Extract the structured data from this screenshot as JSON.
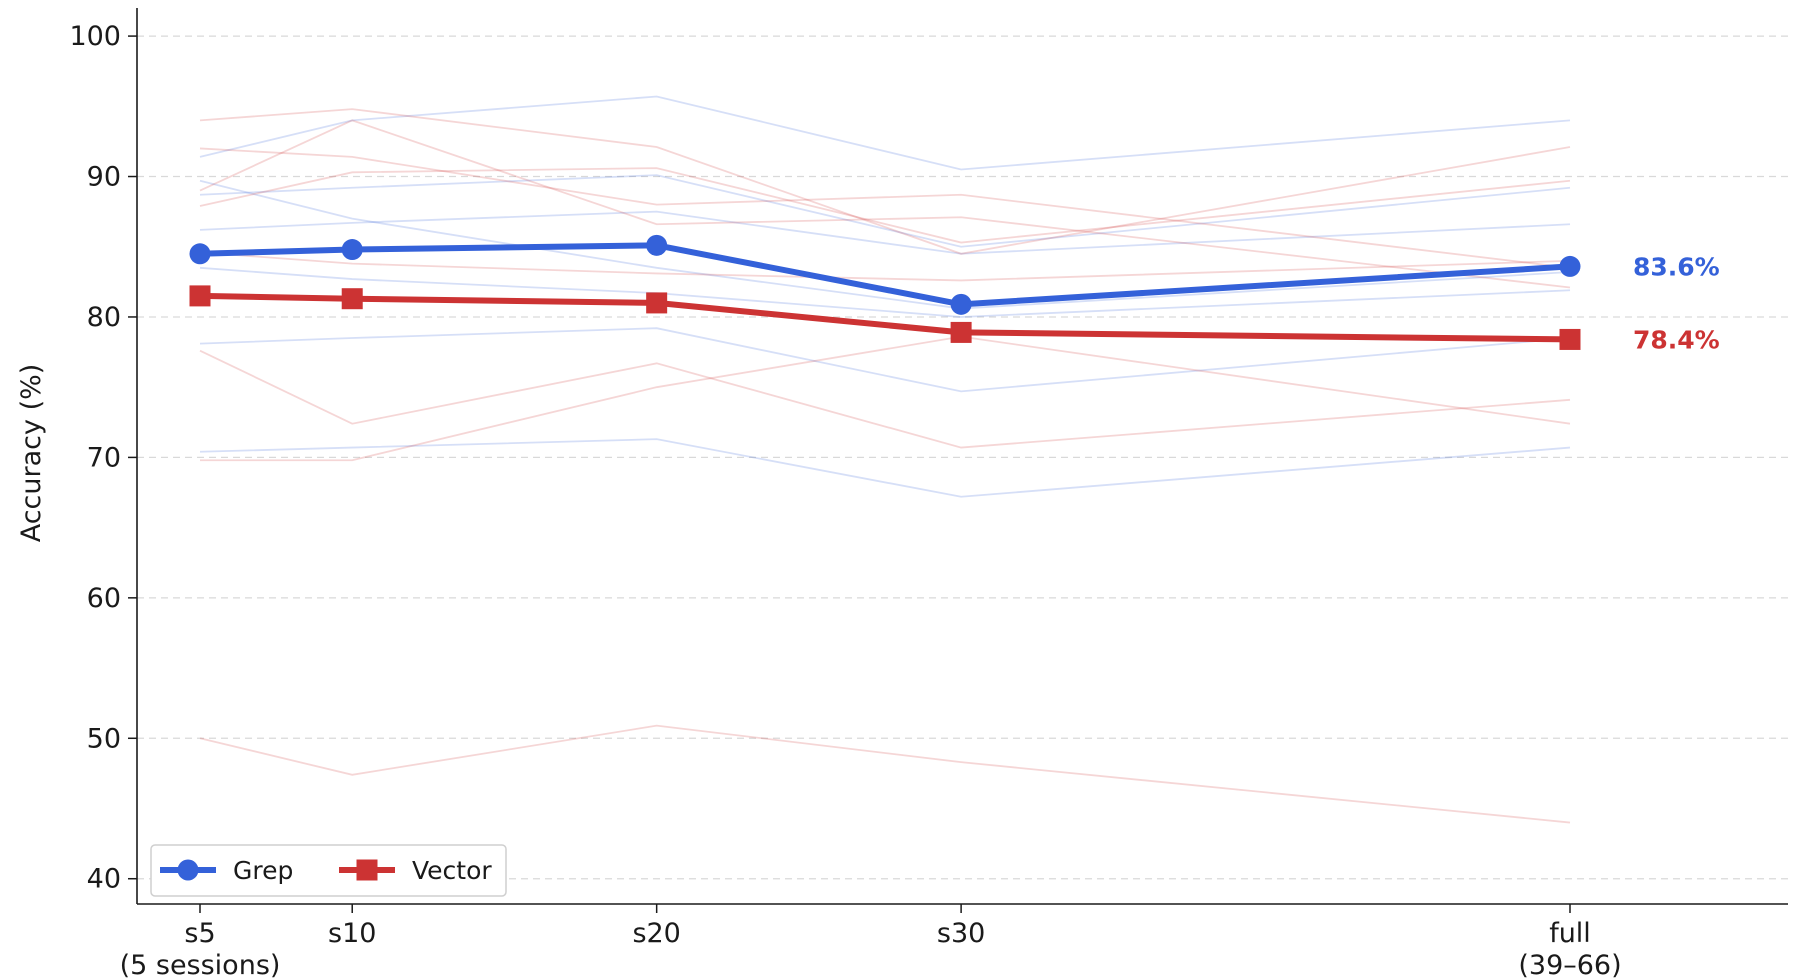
{
  "chart_data": {
    "type": "line",
    "title": "",
    "xlabel": "",
    "ylabel": "Accuracy (%)",
    "ylim": [
      38.2,
      102
    ],
    "yticks": [
      40,
      50,
      60,
      70,
      80,
      90,
      100
    ],
    "grid": "horizontal-dashed",
    "legend_placement": "lower-left",
    "x_positions": [
      5,
      10,
      20,
      30,
      50
    ],
    "x_tick_labels": [
      [
        "s5",
        "(5 sessions)"
      ],
      [
        "s10"
      ],
      [
        "s20"
      ],
      [
        "s30"
      ],
      [
        "full",
        "(39–66)"
      ]
    ],
    "series": [
      {
        "name": "Grep",
        "color": "#3461d9",
        "marker": "circle",
        "values": [
          84.5,
          84.8,
          85.1,
          80.9,
          83.6
        ],
        "end_label": "83.6%"
      },
      {
        "name": "Vector",
        "color": "#cc3333",
        "marker": "square",
        "values": [
          81.5,
          81.3,
          81.0,
          78.9,
          78.4
        ],
        "end_label": "78.4%"
      }
    ],
    "background_series": [
      {
        "group": "Grep",
        "values": [
          91.4,
          94.0,
          95.7,
          90.5,
          94.0
        ]
      },
      {
        "group": "Grep",
        "values": [
          89.7,
          87.0,
          83.5,
          80.6,
          83.2
        ]
      },
      {
        "group": "Grep",
        "values": [
          88.7,
          89.2,
          90.1,
          85.0,
          89.2
        ]
      },
      {
        "group": "Grep",
        "values": [
          86.2,
          86.7,
          87.5,
          84.5,
          86.6
        ]
      },
      {
        "group": "Grep",
        "values": [
          83.5,
          82.7,
          81.7,
          80.0,
          81.9
        ]
      },
      {
        "group": "Grep",
        "values": [
          78.1,
          78.5,
          79.2,
          74.7,
          78.5
        ]
      },
      {
        "group": "Grep",
        "values": [
          70.4,
          70.7,
          71.3,
          67.2,
          70.7
        ]
      },
      {
        "group": "Vector",
        "values": [
          94.0,
          94.8,
          92.1,
          84.5,
          92.1
        ]
      },
      {
        "group": "Vector",
        "values": [
          92.0,
          91.4,
          88.0,
          88.7,
          83.5
        ]
      },
      {
        "group": "Vector",
        "values": [
          87.9,
          90.3,
          90.6,
          85.3,
          89.7
        ]
      },
      {
        "group": "Vector",
        "values": [
          89.0,
          94.0,
          86.6,
          87.1,
          82.1
        ]
      },
      {
        "group": "Vector",
        "values": [
          84.6,
          83.8,
          83.1,
          82.6,
          84.0
        ]
      },
      {
        "group": "Vector",
        "values": [
          77.6,
          72.4,
          76.7,
          70.7,
          74.1
        ]
      },
      {
        "group": "Vector",
        "values": [
          69.8,
          69.8,
          75.0,
          78.6,
          72.4
        ]
      },
      {
        "group": "Vector",
        "values": [
          50.0,
          47.4,
          50.9,
          48.3,
          44.0
        ]
      }
    ]
  }
}
